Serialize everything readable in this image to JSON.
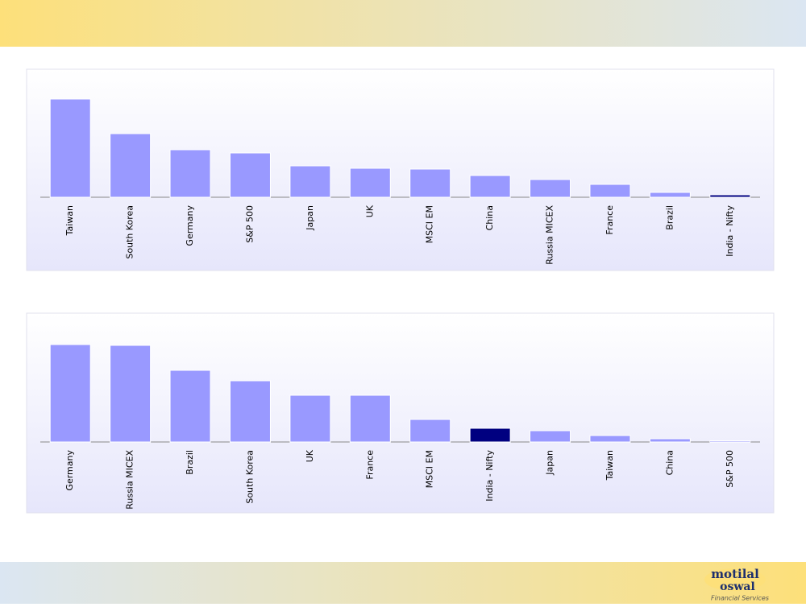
{
  "chart_data": [
    {
      "type": "bar",
      "categories": [
        "Taiwan",
        "South Korea",
        "Germany",
        "S&P 500",
        "Japan",
        "UK",
        "MSCI EM",
        "China",
        "Russia MICEX",
        "France",
        "Brazil",
        "India - Nifty"
      ],
      "values": [
        122,
        79,
        59,
        55,
        39,
        36,
        35,
        27,
        22,
        16,
        6,
        3
      ],
      "colors": [
        "#9999ff",
        "#9999ff",
        "#9999ff",
        "#9999ff",
        "#9999ff",
        "#9999ff",
        "#9999ff",
        "#9999ff",
        "#9999ff",
        "#9999ff",
        "#9999ff",
        "#000080"
      ],
      "ylim": [
        0,
        140
      ]
    },
    {
      "type": "bar",
      "categories": [
        "Germany",
        "Russia MICEX",
        "Brazil",
        "South Korea",
        "UK",
        "France",
        "MSCI EM",
        "India - Nifty",
        "Japan",
        "Taiwan",
        "China",
        "S&P 500"
      ],
      "values": [
        121,
        120,
        89,
        76,
        58,
        58,
        28,
        17,
        14,
        8,
        4,
        1.5
      ],
      "colors": [
        "#9999ff",
        "#9999ff",
        "#9999ff",
        "#9999ff",
        "#9999ff",
        "#9999ff",
        "#9999ff",
        "#000080",
        "#9999ff",
        "#9999ff",
        "#9999ff",
        "#9999ff"
      ],
      "ylim": [
        0,
        140
      ]
    }
  ],
  "logo": {
    "line1": "motilal",
    "line2": "oswal",
    "tagline": "Financial Services"
  }
}
